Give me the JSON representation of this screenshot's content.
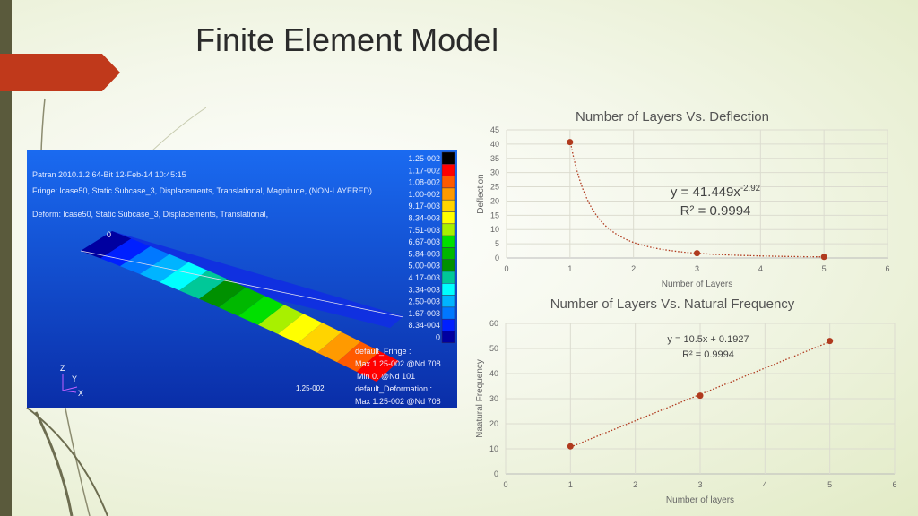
{
  "slide": {
    "title": "Finite Element Model",
    "accent": "#c0391b"
  },
  "fem": {
    "header": "Patran 2010.1.2 64-Bit 12-Feb-14 10:45:15",
    "fringe": "Fringe: lcase50, Static Subcase_3, Displacements, Translational, Magnitude, (NON-LAYERED)",
    "deform": "Deform: lcase50, Static Subcase_3, Displacements, Translational,",
    "legend_values": [
      "1.25-002",
      "1.17-002",
      "1.08-002",
      "1.00-002",
      "9.17-003",
      "8.34-003",
      "7.51-003",
      "6.67-003",
      "5.84-003",
      "5.00-003",
      "4.17-003",
      "3.34-003",
      "2.50-003",
      "1.67-003",
      "8.34-004",
      "0"
    ],
    "legend_colors": [
      "#000000",
      "#ff0000",
      "#ff5a00",
      "#ff9a00",
      "#ffd400",
      "#ffff00",
      "#a8f000",
      "#00e000",
      "#00b800",
      "#009000",
      "#00c898",
      "#00ffff",
      "#00b4ff",
      "#0078ff",
      "#0020ff",
      "#0000a0"
    ],
    "node_label": "0",
    "tip_label": "1.25-002",
    "info": [
      "default_Fringe :",
      "Max 1.25-002 @Nd 708",
      "Min 0. @Nd 101",
      "default_Deformation :",
      "Max 1.25-002 @Nd 708"
    ],
    "axes": [
      "Z",
      "Y",
      "X"
    ]
  },
  "chart_data": [
    {
      "type": "scatter",
      "title": "Number of Layers Vs. Deflection",
      "xlabel": "Number of Layers",
      "ylabel": "Deflection",
      "xlim": [
        0,
        6
      ],
      "ylim": [
        0,
        45
      ],
      "xticks": [
        0,
        1,
        2,
        3,
        4,
        5,
        6
      ],
      "yticks": [
        0,
        5,
        10,
        15,
        20,
        25,
        30,
        35,
        40,
        45
      ],
      "grid": true,
      "x": [
        1,
        3,
        5
      ],
      "y": [
        40.7,
        1.7,
        0.4
      ],
      "trendline": {
        "type": "power",
        "a": 41.449,
        "b": -2.92
      },
      "equation": "y = 41.449x",
      "exponent": "-2.92",
      "r2": "R² = 0.9994",
      "color": "#b03a1e"
    },
    {
      "type": "scatter",
      "title": "Number of Layers Vs. Natural Frequency",
      "xlabel": "Number of layers",
      "ylabel": "Naatural Frequency",
      "xlim": [
        0,
        6
      ],
      "ylim": [
        0,
        60
      ],
      "xticks": [
        0,
        1,
        2,
        3,
        4,
        5,
        6
      ],
      "yticks": [
        0,
        10,
        20,
        30,
        40,
        50,
        60
      ],
      "grid": true,
      "x": [
        1,
        3,
        5
      ],
      "y": [
        11,
        31.2,
        53
      ],
      "trendline": {
        "type": "linear",
        "a": 10.5,
        "b": 0.1927
      },
      "equation": "y = 10.5x + 0.1927",
      "r2": "R² = 0.9994",
      "color": "#b03a1e"
    }
  ]
}
